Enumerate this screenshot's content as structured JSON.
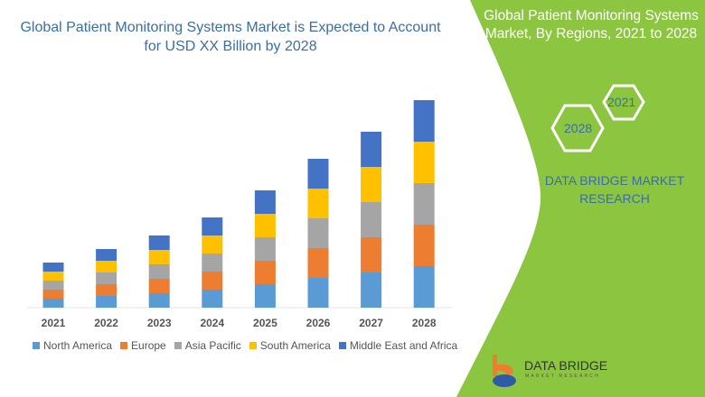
{
  "header": {
    "title": "Global Patient Monitoring Systems Market is Expected to Account for USD XX Billion by 2028"
  },
  "side": {
    "title": "Global Patient Monitoring Systems Market, By Regions, 2021 to 2028",
    "hex_a": "2021",
    "hex_b": "2028",
    "brand": "DATA BRIDGE MARKET RESEARCH",
    "logo": "DATA BRIDGE",
    "logo_sub": "MARKET RESEARCH",
    "green": "#8cc540"
  },
  "chart_data": {
    "type": "bar",
    "stacked": true,
    "categories": [
      "2021",
      "2022",
      "2023",
      "2024",
      "2025",
      "2026",
      "2027",
      "2028"
    ],
    "series": [
      {
        "name": "North America",
        "color": "#5b9bd5",
        "values": [
          10,
          13,
          16,
          20,
          26,
          33,
          39,
          46
        ]
      },
      {
        "name": "Europe",
        "color": "#ed7d31",
        "values": [
          10,
          13,
          16,
          20,
          26,
          33,
          39,
          46
        ]
      },
      {
        "name": "Asia Pacific",
        "color": "#a5a5a5",
        "values": [
          10,
          13,
          16,
          20,
          26,
          33,
          39,
          46
        ]
      },
      {
        "name": "South America",
        "color": "#ffc000",
        "values": [
          10,
          13,
          16,
          20,
          26,
          33,
          39,
          46
        ]
      },
      {
        "name": "Middle East and Africa",
        "color": "#4472c4",
        "values": [
          10,
          13,
          16,
          20,
          26,
          33,
          39,
          46
        ]
      }
    ],
    "ylim": [
      0,
      240
    ],
    "grid": false,
    "legend": "bottom"
  }
}
